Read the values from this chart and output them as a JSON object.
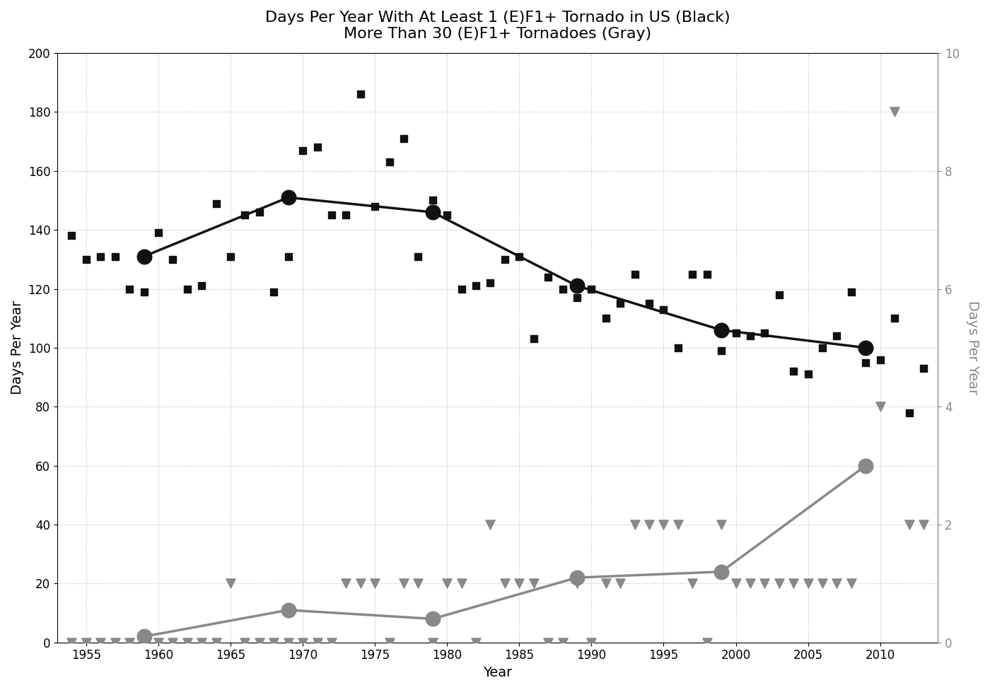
{
  "title_line1": "Days Per Year With At Least 1 (E)F1+ Tornado in US (Black)",
  "title_line2": "More Than 30 (E)F1+ Tornadoes (Gray)",
  "xlabel": "Year",
  "ylabel_left": "Days Per Year",
  "ylabel_right": "Days Per Year",
  "xlim": [
    1953,
    2014
  ],
  "ylim_left": [
    0,
    200
  ],
  "ylim_right": [
    0,
    10
  ],
  "xticks": [
    1955,
    1960,
    1965,
    1970,
    1975,
    1980,
    1985,
    1990,
    1995,
    2000,
    2005,
    2010
  ],
  "yticks_left": [
    0,
    20,
    40,
    60,
    80,
    100,
    120,
    140,
    160,
    180,
    200
  ],
  "yticks_right": [
    0,
    2,
    4,
    6,
    8,
    10
  ],
  "black_scatter_x": [
    1954,
    1955,
    1956,
    1957,
    1958,
    1959,
    1960,
    1961,
    1962,
    1963,
    1964,
    1965,
    1966,
    1967,
    1968,
    1969,
    1970,
    1971,
    1972,
    1973,
    1974,
    1975,
    1976,
    1977,
    1978,
    1979,
    1980,
    1981,
    1982,
    1983,
    1984,
    1985,
    1986,
    1987,
    1988,
    1989,
    1990,
    1991,
    1992,
    1993,
    1994,
    1995,
    1996,
    1997,
    1998,
    1999,
    2000,
    2001,
    2002,
    2003,
    2004,
    2005,
    2006,
    2007,
    2008,
    2009,
    2010,
    2011,
    2012,
    2013
  ],
  "black_scatter_y": [
    138,
    130,
    131,
    131,
    120,
    119,
    139,
    130,
    120,
    121,
    149,
    131,
    145,
    146,
    119,
    131,
    167,
    168,
    145,
    145,
    186,
    148,
    163,
    171,
    131,
    150,
    145,
    120,
    121,
    122,
    130,
    131,
    103,
    124,
    120,
    117,
    120,
    110,
    115,
    125,
    115,
    113,
    100,
    125,
    125,
    99,
    105,
    104,
    105,
    118,
    92,
    91,
    100,
    104,
    119,
    95,
    96,
    110,
    78,
    93
  ],
  "black_line_x": [
    1959,
    1969,
    1979,
    1989,
    1999,
    2009
  ],
  "black_line_y": [
    131,
    151,
    146,
    121,
    106,
    100
  ],
  "gray_scatter_x": [
    1954,
    1955,
    1956,
    1957,
    1958,
    1959,
    1960,
    1961,
    1962,
    1963,
    1964,
    1965,
    1966,
    1967,
    1968,
    1969,
    1970,
    1971,
    1972,
    1973,
    1974,
    1975,
    1976,
    1977,
    1978,
    1979,
    1980,
    1981,
    1982,
    1983,
    1984,
    1985,
    1986,
    1987,
    1988,
    1989,
    1990,
    1991,
    1992,
    1993,
    1994,
    1995,
    1996,
    1997,
    1998,
    1999,
    2000,
    2001,
    2002,
    2003,
    2004,
    2005,
    2006,
    2007,
    2008,
    2009,
    2010,
    2011,
    2012,
    2013
  ],
  "gray_scatter_y": [
    0,
    0,
    0,
    0,
    0,
    0,
    0,
    0,
    0,
    0,
    0,
    20,
    0,
    0,
    0,
    0,
    0,
    0,
    0,
    20,
    20,
    20,
    0,
    20,
    20,
    0,
    20,
    20,
    0,
    40,
    20,
    20,
    20,
    0,
    0,
    20,
    0,
    20,
    20,
    40,
    40,
    40,
    40,
    20,
    0,
    40,
    20,
    20,
    20,
    20,
    20,
    20,
    20,
    20,
    20,
    60,
    80,
    180,
    40,
    40
  ],
  "gray_line_x": [
    1959,
    1969,
    1979,
    1989,
    1999,
    2009
  ],
  "gray_line_y": [
    2,
    11,
    8,
    22,
    24,
    60
  ],
  "background_color": "#ffffff",
  "grid_color": "#bbbbbb",
  "black_color": "#111111",
  "gray_color": "#888888",
  "title_fontsize": 16,
  "axis_label_fontsize": 14,
  "tick_fontsize": 12
}
